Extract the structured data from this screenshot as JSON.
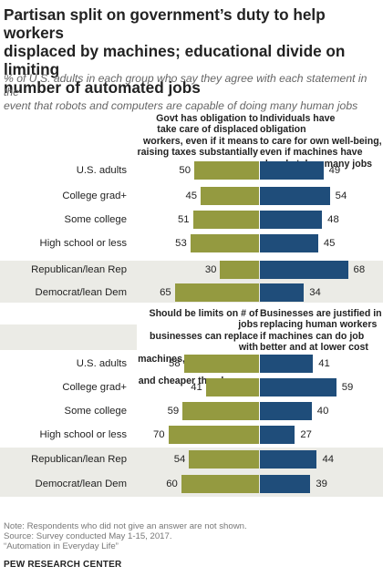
{
  "header": {
    "title_lines": [
      "Partisan split on government’s  duty to help workers",
      "displaced by machines; educational divide on limiting",
      "number of automated jobs"
    ],
    "subtitle_lines": [
      "% of U.S. adults in each group who say they agree with each statement in the",
      "event that robots and computers are capable of doing many human jobs"
    ]
  },
  "chart_data": [
    {
      "type": "bar",
      "left_series": {
        "name_lines": [
          "Govt has obligation to",
          "take care of displaced",
          "workers, even if it means",
          "raising taxes substantially"
        ],
        "color": "#949a40"
      },
      "right_series": {
        "name_lines": [
          "Individuals have obligation",
          "to care for own well-being,",
          "even if machines have",
          "already taken many jobs"
        ],
        "color": "#1f4d7a"
      },
      "categories": [
        "U.S. adults",
        "College grad+",
        "Some college",
        "High school or less",
        "Republican/lean Rep",
        "Democrat/lean Dem"
      ],
      "left_values": [
        50,
        45,
        51,
        53,
        30,
        65
      ],
      "right_values": [
        49,
        54,
        48,
        45,
        68,
        34
      ]
    },
    {
      "type": "bar",
      "left_series": {
        "name_lines": [
          "Should be limits on # of jobs",
          "businesses can replace with",
          "machines, even if they are better",
          "and cheaper than humans"
        ],
        "color": "#949a40"
      },
      "right_series": {
        "name_lines": [
          "Businesses are justified in",
          "replacing human workers",
          "if machines can do job",
          "better and at lower cost"
        ],
        "color": "#1f4d7a"
      },
      "categories": [
        "U.S. adults",
        "College grad+",
        "Some college",
        "High school or less",
        "Republican/lean Rep",
        "Democrat/lean Dem"
      ],
      "left_values": [
        58,
        41,
        59,
        70,
        54,
        60
      ],
      "right_values": [
        41,
        59,
        40,
        27,
        44,
        39
      ]
    }
  ],
  "footer": {
    "lines": [
      "Note: Respondents who did not give an answer are not shown.",
      "Source: Survey conducted May 1-15, 2017.",
      "“Automation in Everyday Life”"
    ],
    "source": "PEW RESEARCH CENTER"
  }
}
